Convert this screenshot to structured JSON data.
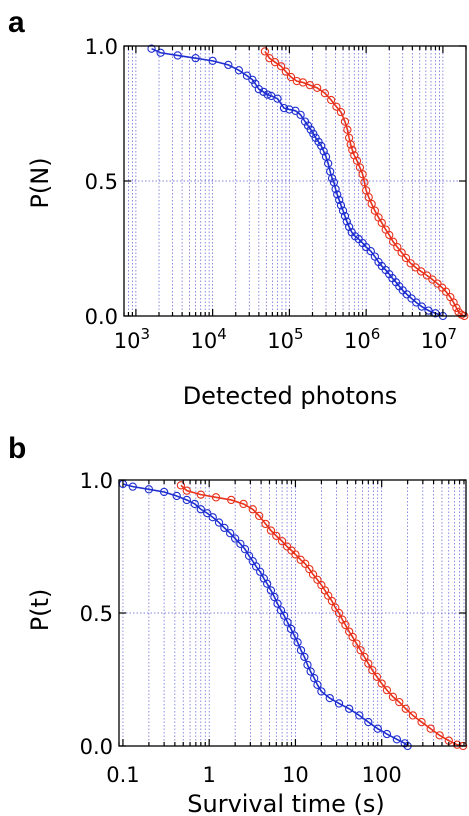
{
  "chart_data": [
    {
      "panel": "a",
      "type": "line",
      "xscale": "log",
      "xlim": [
        700,
        20000000
      ],
      "ylim": [
        0,
        1
      ],
      "xlabel": "Detected photons",
      "ylabel": "P(N)",
      "xticks": [
        {
          "value": 1000,
          "base": "10",
          "exp": "3"
        },
        {
          "value": 10000,
          "base": "10",
          "exp": "4"
        },
        {
          "value": 100000,
          "base": "10",
          "exp": "5"
        },
        {
          "value": 1000000,
          "base": "10",
          "exp": "6"
        },
        {
          "value": 10000000,
          "base": "10",
          "exp": "7"
        }
      ],
      "yticks": [
        {
          "value": 0,
          "label": "0.0"
        },
        {
          "value": 0.5,
          "label": "0.5"
        },
        {
          "value": 1,
          "label": "1.0"
        }
      ],
      "grid": true,
      "series": [
        {
          "color": "#1f2fd0",
          "points": [
            [
              1600,
              0.99
            ],
            [
              2100,
              0.975
            ],
            [
              3500,
              0.965
            ],
            [
              6000,
              0.955
            ],
            [
              10000,
              0.945
            ],
            [
              16000,
              0.93
            ],
            [
              22000,
              0.91
            ],
            [
              28000,
              0.89
            ],
            [
              33000,
              0.875
            ],
            [
              36000,
              0.86
            ],
            [
              40000,
              0.84
            ],
            [
              46000,
              0.83
            ],
            [
              52000,
              0.82
            ],
            [
              58000,
              0.815
            ],
            [
              70000,
              0.805
            ],
            [
              85000,
              0.77
            ],
            [
              100000,
              0.765
            ],
            [
              120000,
              0.76
            ],
            [
              140000,
              0.745
            ],
            [
              160000,
              0.72
            ],
            [
              175000,
              0.705
            ],
            [
              190000,
              0.69
            ],
            [
              205000,
              0.675
            ],
            [
              220000,
              0.66
            ],
            [
              240000,
              0.645
            ],
            [
              260000,
              0.63
            ],
            [
              280000,
              0.61
            ],
            [
              300000,
              0.59
            ],
            [
              320000,
              0.565
            ],
            [
              340000,
              0.535
            ],
            [
              360000,
              0.51
            ],
            [
              380000,
              0.495
            ],
            [
              400000,
              0.47
            ],
            [
              420000,
              0.45
            ],
            [
              445000,
              0.43
            ],
            [
              470000,
              0.41
            ],
            [
              500000,
              0.39
            ],
            [
              530000,
              0.37
            ],
            [
              560000,
              0.35
            ],
            [
              600000,
              0.33
            ],
            [
              650000,
              0.31
            ],
            [
              720000,
              0.295
            ],
            [
              800000,
              0.285
            ],
            [
              900000,
              0.27
            ],
            [
              1000000,
              0.255
            ],
            [
              1150000,
              0.24
            ],
            [
              1300000,
              0.22
            ],
            [
              1450000,
              0.2
            ],
            [
              1600000,
              0.185
            ],
            [
              1800000,
              0.17
            ],
            [
              2000000,
              0.155
            ],
            [
              2200000,
              0.14
            ],
            [
              2450000,
              0.125
            ],
            [
              2700000,
              0.11
            ],
            [
              3000000,
              0.095
            ],
            [
              3400000,
              0.08
            ],
            [
              3900000,
              0.065
            ],
            [
              4500000,
              0.05
            ],
            [
              5300000,
              0.035
            ],
            [
              6500000,
              0.02
            ],
            [
              8000000,
              0.01
            ],
            [
              10000000,
              0.0
            ]
          ]
        },
        {
          "color": "#e8321c",
          "points": [
            [
              48000,
              0.98
            ],
            [
              55000,
              0.955
            ],
            [
              65000,
              0.94
            ],
            [
              78000,
              0.925
            ],
            [
              90000,
              0.905
            ],
            [
              105000,
              0.885
            ],
            [
              125000,
              0.87
            ],
            [
              150000,
              0.865
            ],
            [
              185000,
              0.855
            ],
            [
              230000,
              0.845
            ],
            [
              290000,
              0.825
            ],
            [
              350000,
              0.8
            ],
            [
              410000,
              0.775
            ],
            [
              470000,
              0.755
            ],
            [
              530000,
              0.72
            ],
            [
              570000,
              0.69
            ],
            [
              600000,
              0.66
            ],
            [
              630000,
              0.635
            ],
            [
              660000,
              0.615
            ],
            [
              700000,
              0.595
            ],
            [
              760000,
              0.575
            ],
            [
              830000,
              0.55
            ],
            [
              900000,
              0.525
            ],
            [
              950000,
              0.495
            ],
            [
              1000000,
              0.465
            ],
            [
              1080000,
              0.44
            ],
            [
              1180000,
              0.415
            ],
            [
              1300000,
              0.39
            ],
            [
              1450000,
              0.365
            ],
            [
              1600000,
              0.345
            ],
            [
              1800000,
              0.32
            ],
            [
              2000000,
              0.3
            ],
            [
              2250000,
              0.275
            ],
            [
              2550000,
              0.255
            ],
            [
              2900000,
              0.235
            ],
            [
              3300000,
              0.215
            ],
            [
              3800000,
              0.195
            ],
            [
              4400000,
              0.18
            ],
            [
              5200000,
              0.165
            ],
            [
              6200000,
              0.15
            ],
            [
              7300000,
              0.135
            ],
            [
              8500000,
              0.12
            ],
            [
              9800000,
              0.105
            ],
            [
              11000000,
              0.09
            ],
            [
              12500000,
              0.07
            ],
            [
              13800000,
              0.05
            ],
            [
              15000000,
              0.03
            ],
            [
              16000000,
              0.015
            ],
            [
              17500000,
              0.005
            ],
            [
              19000000,
              0.0
            ]
          ]
        }
      ]
    },
    {
      "panel": "b",
      "type": "line",
      "xscale": "log",
      "xlim": [
        0.09,
        950
      ],
      "ylim": [
        0,
        1
      ],
      "xlabel": "Survival time (s)",
      "ylabel": "P(t)",
      "xticks": [
        {
          "value": 0.1,
          "label": "0.1"
        },
        {
          "value": 1,
          "label": "1"
        },
        {
          "value": 10,
          "label": "10"
        },
        {
          "value": 100,
          "label": "100"
        }
      ],
      "yticks": [
        {
          "value": 0,
          "label": "0.0"
        },
        {
          "value": 0.5,
          "label": "0.5"
        },
        {
          "value": 1,
          "label": "1.0"
        }
      ],
      "grid": true,
      "series": [
        {
          "color": "#1f2fd0",
          "points": [
            [
              0.1,
              0.985
            ],
            [
              0.13,
              0.975
            ],
            [
              0.2,
              0.965
            ],
            [
              0.3,
              0.955
            ],
            [
              0.42,
              0.94
            ],
            [
              0.55,
              0.925
            ],
            [
              0.68,
              0.91
            ],
            [
              0.8,
              0.89
            ],
            [
              0.95,
              0.875
            ],
            [
              1.1,
              0.86
            ],
            [
              1.3,
              0.84
            ],
            [
              1.5,
              0.82
            ],
            [
              1.75,
              0.8
            ],
            [
              2.0,
              0.78
            ],
            [
              2.3,
              0.76
            ],
            [
              2.6,
              0.74
            ],
            [
              2.9,
              0.715
            ],
            [
              3.2,
              0.695
            ],
            [
              3.5,
              0.675
            ],
            [
              3.9,
              0.655
            ],
            [
              4.3,
              0.63
            ],
            [
              4.7,
              0.61
            ],
            [
              5.2,
              0.585
            ],
            [
              5.7,
              0.56
            ],
            [
              6.2,
              0.535
            ],
            [
              6.8,
              0.51
            ],
            [
              7.4,
              0.49
            ],
            [
              8.1,
              0.465
            ],
            [
              8.9,
              0.44
            ],
            [
              9.7,
              0.415
            ],
            [
              10.6,
              0.39
            ],
            [
              11.6,
              0.36
            ],
            [
              12.7,
              0.335
            ],
            [
              13.8,
              0.305
            ],
            [
              15.0,
              0.28
            ],
            [
              16.5,
              0.255
            ],
            [
              18.0,
              0.23
            ],
            [
              20.0,
              0.205
            ],
            [
              25.0,
              0.18
            ],
            [
              32.0,
              0.16
            ],
            [
              42.0,
              0.14
            ],
            [
              55.0,
              0.115
            ],
            [
              70.0,
              0.09
            ],
            [
              90.0,
              0.065
            ],
            [
              115.0,
              0.045
            ],
            [
              150.0,
              0.025
            ],
            [
              185.0,
              0.01
            ],
            [
              200.0,
              0.0
            ]
          ]
        },
        {
          "color": "#e8321c",
          "points": [
            [
              0.47,
              0.98
            ],
            [
              0.55,
              0.96
            ],
            [
              0.8,
              0.945
            ],
            [
              1.2,
              0.935
            ],
            [
              1.8,
              0.925
            ],
            [
              2.5,
              0.91
            ],
            [
              3.2,
              0.89
            ],
            [
              3.8,
              0.865
            ],
            [
              4.5,
              0.835
            ],
            [
              5.2,
              0.81
            ],
            [
              6.0,
              0.79
            ],
            [
              7.0,
              0.77
            ],
            [
              8.0,
              0.75
            ],
            [
              9.0,
              0.735
            ],
            [
              10.0,
              0.72
            ],
            [
              11.5,
              0.7
            ],
            [
              13.0,
              0.685
            ],
            [
              14.5,
              0.665
            ],
            [
              16.0,
              0.645
            ],
            [
              18.0,
              0.625
            ],
            [
              20.0,
              0.605
            ],
            [
              22.0,
              0.585
            ],
            [
              24.0,
              0.565
            ],
            [
              26.5,
              0.545
            ],
            [
              29.0,
              0.52
            ],
            [
              32.0,
              0.5
            ],
            [
              35.0,
              0.475
            ],
            [
              38.0,
              0.455
            ],
            [
              42.0,
              0.43
            ],
            [
              46.0,
              0.41
            ],
            [
              51.0,
              0.385
            ],
            [
              57.0,
              0.36
            ],
            [
              63.0,
              0.335
            ],
            [
              70.0,
              0.31
            ],
            [
              78.0,
              0.285
            ],
            [
              88.0,
              0.26
            ],
            [
              100.0,
              0.235
            ],
            [
              115.0,
              0.21
            ],
            [
              135.0,
              0.185
            ],
            [
              160.0,
              0.165
            ],
            [
              190.0,
              0.14
            ],
            [
              230.0,
              0.115
            ],
            [
              290.0,
              0.09
            ],
            [
              370.0,
              0.065
            ],
            [
              470.0,
              0.04
            ],
            [
              600.0,
              0.02
            ],
            [
              750.0,
              0.005
            ],
            [
              880.0,
              0.0
            ]
          ]
        }
      ]
    }
  ]
}
